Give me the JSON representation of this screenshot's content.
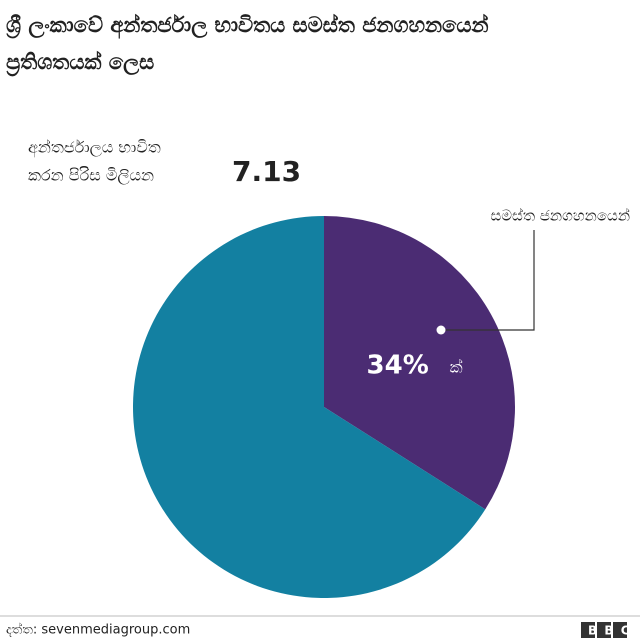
{
  "chart_data": {
    "type": "pie",
    "title": [
      "ශ්‍රී ලංකාවේ අන්තර්ජාල භාවිතය සමස්ත ජනගහනයෙන්",
      "ප්‍රතිශතයක් ලෙස"
    ],
    "annotation": [
      "අන්තර්ජාලය  භාවිත",
      "කරන  පිරිස  මිලියන"
    ],
    "annotation_value": 7.13,
    "categories": [
      "සමස්ත ජනගහනයෙන්",
      null
    ],
    "values": [
      34,
      66
    ],
    "value_labels": [
      "34%",
      null
    ],
    "value_label_suffix": "ක්",
    "colors": [
      "#4b2c73",
      "#1380a1"
    ]
  },
  "footer": {
    "source": "දත්ත: sevenmediagroup.com",
    "logo": "BBC"
  }
}
